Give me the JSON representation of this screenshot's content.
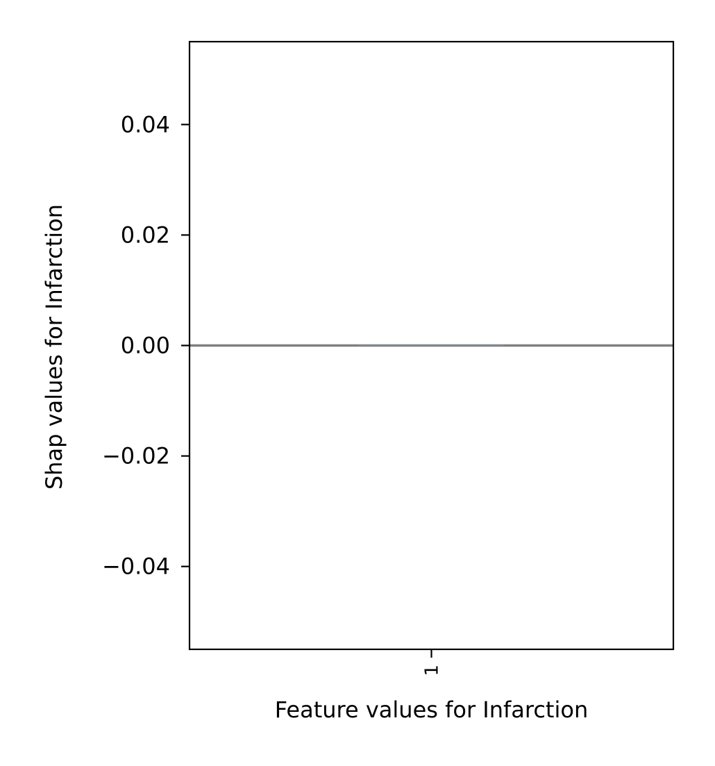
{
  "chart_data": {
    "type": "box",
    "title": "",
    "xlabel": "Feature values for Infarction",
    "ylabel": "Shap values for Infarction",
    "categories": [
      "1"
    ],
    "series": [
      {
        "category": "1",
        "min": 0.0,
        "q1": 0.0,
        "median": 0.0,
        "q3": 0.0,
        "max": 0.0
      }
    ],
    "reference_line": {
      "y": 0.0
    },
    "ylim": [
      -0.055,
      0.055
    ],
    "yticks": [
      -0.04,
      -0.02,
      0.0,
      0.02,
      0.04
    ],
    "ytick_labels": [
      "−0.04",
      "−0.02",
      "0.00",
      "0.02",
      "0.04"
    ],
    "xtick_labels": [
      "1"
    ],
    "grid": false,
    "legend": "none",
    "colors": {
      "reference_line": "#808080",
      "box": "#7f8790",
      "axes": "#000000"
    }
  }
}
